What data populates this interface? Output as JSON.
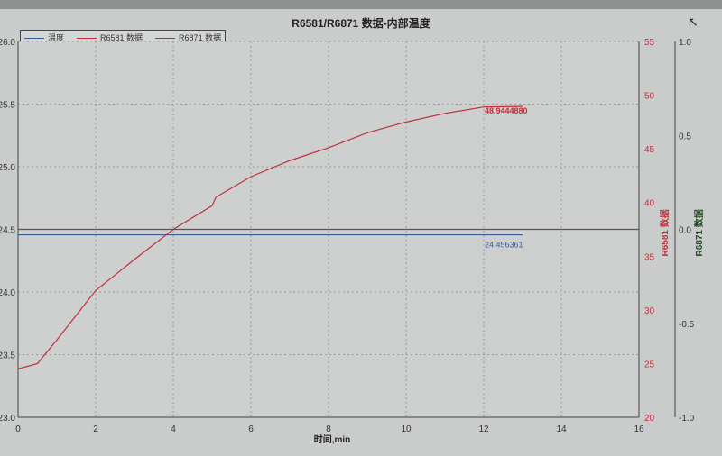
{
  "chart_data": {
    "type": "line",
    "title": "R6581/R6871 数据-内部温度",
    "xlabel": "时间,min",
    "xlim": [
      0,
      16
    ],
    "xticks": [
      0,
      2,
      4,
      6,
      8,
      10,
      12,
      14,
      16
    ],
    "y_left": {
      "ylim": [
        23.0,
        26.0
      ],
      "ticks": [
        "23.0",
        "23.5",
        "24.0",
        "24.5",
        "25.0",
        "25.5",
        "26.0"
      ]
    },
    "y_right1": {
      "label": "R6581 数据",
      "ylim": [
        20,
        55
      ],
      "ticks": [
        "20",
        "25",
        "30",
        "35",
        "40",
        "45",
        "50",
        "55"
      ],
      "color": "#c0303a"
    },
    "y_right2": {
      "label": "R6871 数据",
      "ylim": [
        -1.0,
        1.0
      ],
      "ticks": [
        "-1.0",
        "-0.5",
        "0.0",
        "0.5",
        "1.0"
      ],
      "color": "#1f4a1f"
    },
    "grid": true,
    "legend_position": "top-left",
    "series": [
      {
        "name": "温度",
        "axis": "left",
        "color": "#3a5a9a",
        "x": [
          0,
          13
        ],
        "y": [
          24.456361,
          24.456361
        ],
        "label": "24.456361"
      },
      {
        "name": "R6581 数据",
        "axis": "right1",
        "color": "#c0303a",
        "x": [
          0,
          0.5,
          1,
          2,
          3,
          4,
          5,
          5.1,
          6,
          7,
          8,
          9,
          10,
          11,
          12,
          13
        ],
        "y": [
          24.5,
          25,
          27.2,
          31.8,
          34.7,
          37.5,
          39.7,
          40.5,
          42.4,
          43.9,
          45.1,
          46.5,
          47.5,
          48.3,
          48.9,
          48.944488
        ],
        "label": "48.9444880"
      },
      {
        "name": "R6871 数据",
        "axis": "right2",
        "color": "#555",
        "x": [
          0,
          16
        ],
        "y": [
          0,
          0
        ]
      }
    ]
  }
}
